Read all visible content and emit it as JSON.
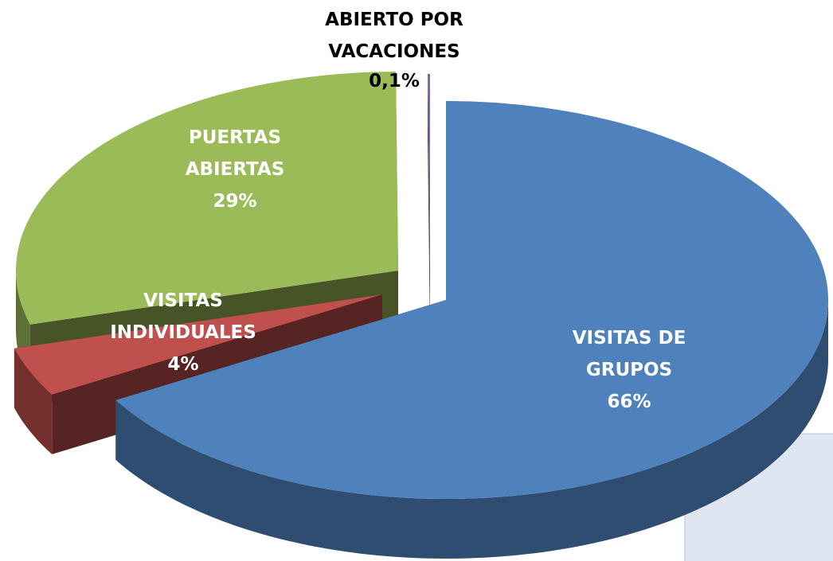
{
  "chart_data": {
    "type": "pie3d",
    "categories": [
      "VISITAS DE GRUPOS",
      "VISITAS INDIVIDUALES",
      "PUERTAS ABIERTAS",
      "ABIERTO POR VACACIONES"
    ],
    "values": [
      66,
      4,
      29,
      0.1
    ],
    "value_labels": [
      "66%",
      "4%",
      "29%",
      "0,1%"
    ],
    "colors": [
      "#4f81bd",
      "#c0504d",
      "#9bbb59",
      "#8064a2"
    ]
  }
}
